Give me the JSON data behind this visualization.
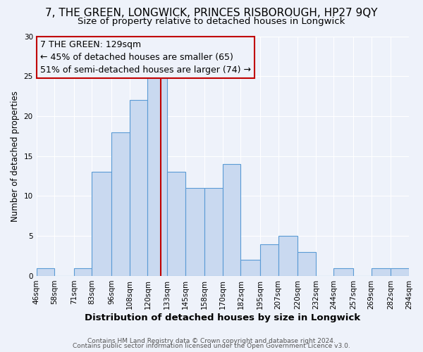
{
  "title": "7, THE GREEN, LONGWICK, PRINCES RISBOROUGH, HP27 9QY",
  "subtitle": "Size of property relative to detached houses in Longwick",
  "xlabel": "Distribution of detached houses by size in Longwick",
  "ylabel": "Number of detached properties",
  "bin_labels": [
    "46sqm",
    "58sqm",
    "71sqm",
    "83sqm",
    "96sqm",
    "108sqm",
    "120sqm",
    "133sqm",
    "145sqm",
    "158sqm",
    "170sqm",
    "182sqm",
    "195sqm",
    "207sqm",
    "220sqm",
    "232sqm",
    "244sqm",
    "257sqm",
    "269sqm",
    "282sqm",
    "294sqm"
  ],
  "bin_edges": [
    46,
    58,
    71,
    83,
    96,
    108,
    120,
    133,
    145,
    158,
    170,
    182,
    195,
    207,
    220,
    232,
    244,
    257,
    269,
    282,
    294
  ],
  "bar_heights": [
    1,
    0,
    1,
    13,
    18,
    22,
    25,
    13,
    11,
    11,
    14,
    2,
    4,
    5,
    3,
    0,
    1,
    0,
    1,
    1
  ],
  "bar_facecolor": "#c9d9f0",
  "bar_edgecolor": "#5b9bd5",
  "vline_x": 129,
  "vline_color": "#c00000",
  "annotation_line1": "7 THE GREEN: 129sqm",
  "annotation_line2": "← 45% of detached houses are smaller (65)",
  "annotation_line3": "51% of semi-detached houses are larger (74) →",
  "annotation_box_edgecolor": "#c00000",
  "ylim": [
    0,
    30
  ],
  "yticks": [
    0,
    5,
    10,
    15,
    20,
    25,
    30
  ],
  "footer1": "Contains HM Land Registry data © Crown copyright and database right 2024.",
  "footer2": "Contains public sector information licensed under the Open Government Licence v3.0.",
  "bg_color": "#eef2fa",
  "grid_color": "#ffffff",
  "title_fontsize": 11,
  "subtitle_fontsize": 9.5,
  "xlabel_fontsize": 9.5,
  "ylabel_fontsize": 8.5,
  "tick_fontsize": 7.5,
  "annot_fontsize": 9,
  "footer_fontsize": 6.5
}
